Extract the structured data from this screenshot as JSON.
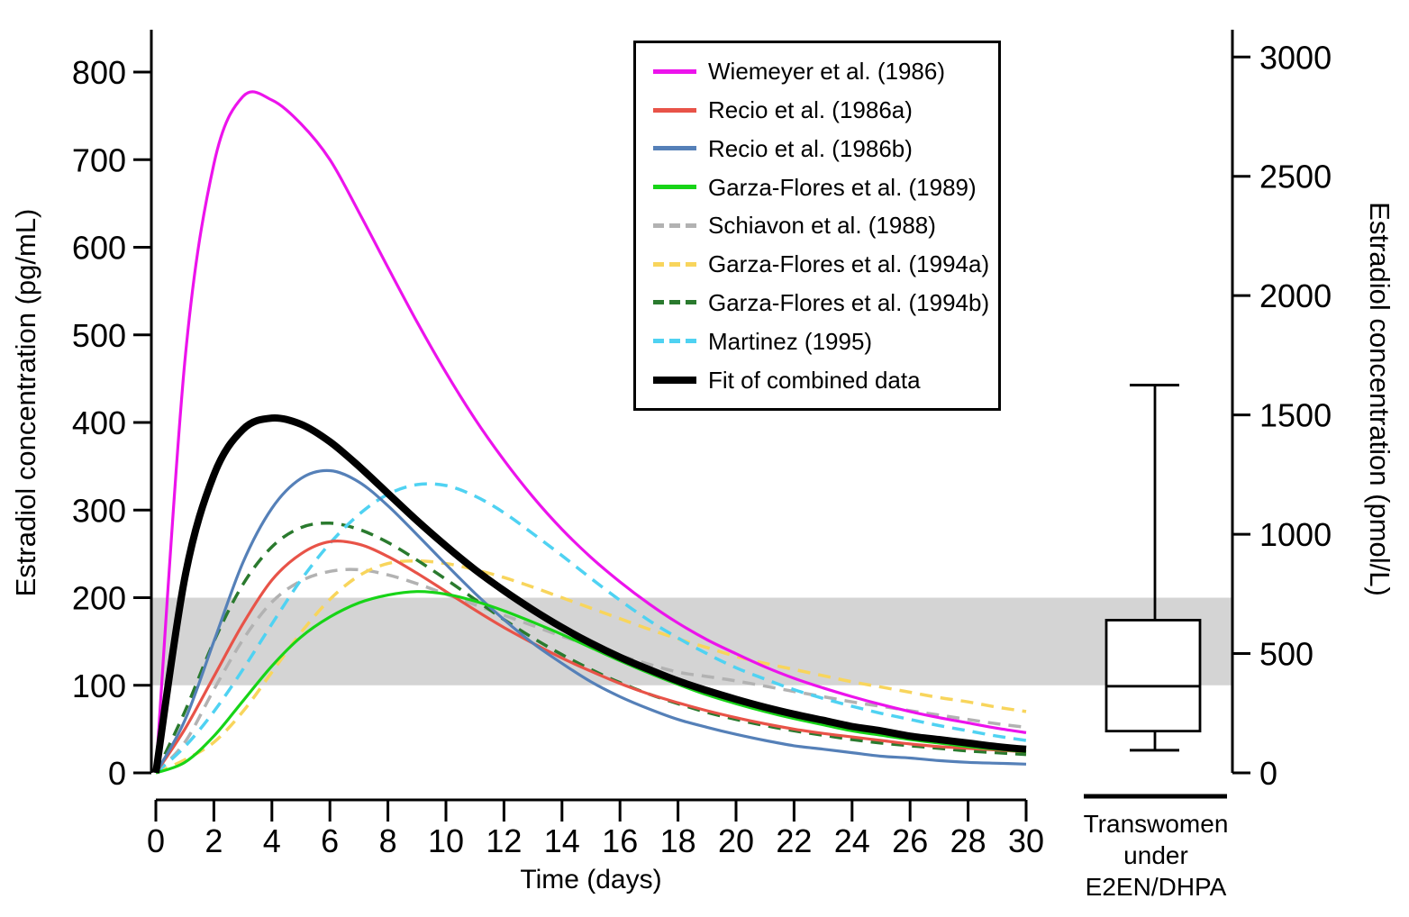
{
  "chart_data": {
    "type": "line",
    "xlabel": "Time (days)",
    "ylabel_left": "Estradiol concentration (pg/mL)",
    "ylabel_right": "Estradiol concentration (pmol/L)",
    "x_range": [
      0,
      30
    ],
    "x_ticks": [
      0,
      2,
      4,
      6,
      8,
      10,
      12,
      14,
      16,
      18,
      20,
      22,
      24,
      26,
      28,
      30
    ],
    "y_left_ticks": [
      0,
      100,
      200,
      300,
      400,
      500,
      600,
      700,
      800
    ],
    "y_right_ticks": [
      0,
      500,
      1000,
      1500,
      2000,
      2500,
      3000
    ],
    "pmol_per_pg": 3.671,
    "grid": false,
    "legend_position": "top-right-inside",
    "x": [
      0,
      1,
      2,
      3,
      4,
      5,
      6,
      7,
      8,
      9,
      10,
      11,
      12,
      13,
      14,
      15,
      16,
      17,
      18,
      19,
      20,
      21,
      22,
      23,
      24,
      25,
      26,
      27,
      28,
      29,
      30
    ],
    "series": [
      {
        "name": "Wiemeyer et al. (1986)",
        "color": "#ec13ec",
        "dash": false,
        "thick": false,
        "values": [
          0,
          470,
          695,
          772,
          768,
          741,
          700,
          640,
          577,
          515,
          457,
          404,
          357,
          315,
          278,
          246,
          218,
          193,
          171,
          152,
          136,
          121,
          108,
          97,
          87,
          78,
          70,
          63,
          57,
          51,
          46
        ]
      },
      {
        "name": "Recio et al. (1986a)",
        "color": "#e85348",
        "dash": false,
        "thick": false,
        "values": [
          0,
          50,
          110,
          170,
          220,
          250,
          264,
          261,
          247,
          228,
          207,
          186,
          166,
          148,
          131,
          116,
          102,
          90,
          80,
          71,
          63,
          56,
          50,
          45,
          41,
          37,
          33,
          30,
          28,
          26,
          24
        ]
      },
      {
        "name": "Recio et al. (1986b)",
        "color": "#5580b8",
        "dash": false,
        "thick": false,
        "values": [
          0,
          60,
          150,
          240,
          302,
          336,
          345,
          332,
          305,
          272,
          238,
          205,
          175,
          148,
          125,
          104,
          87,
          73,
          61,
          52,
          44,
          37,
          31,
          27,
          23,
          19,
          17,
          14,
          12,
          11,
          10
        ]
      },
      {
        "name": "Garza-Flores et al. (1989)",
        "color": "#17d417",
        "dash": false,
        "thick": false,
        "values": [
          0,
          12,
          42,
          82,
          122,
          155,
          178,
          194,
          203,
          207,
          204,
          196,
          185,
          172,
          158,
          143,
          128,
          114,
          101,
          89,
          79,
          70,
          62,
          55,
          48,
          43,
          38,
          34,
          30,
          27,
          24
        ]
      },
      {
        "name": "Schiavon et al. (1988)",
        "color": "#b2b2b2",
        "dash": true,
        "thick": false,
        "values": [
          0,
          35,
          95,
          152,
          195,
          219,
          230,
          232,
          226,
          216,
          204,
          192,
          180,
          168,
          156,
          145,
          134,
          124,
          115,
          110,
          105,
          99,
          93,
          87,
          81,
          76,
          71,
          66,
          61,
          56,
          52
        ]
      },
      {
        "name": "Garza-Flores et al. (1994a)",
        "color": "#f8d55c",
        "dash": true,
        "thick": false,
        "values": [
          0,
          15,
          35,
          70,
          115,
          160,
          198,
          225,
          239,
          242,
          239,
          232,
          223,
          212,
          200,
          188,
          176,
          164,
          153,
          143,
          133,
          125,
          118,
          111,
          104,
          98,
          92,
          86,
          81,
          75,
          70
        ]
      },
      {
        "name": "Garza-Flores et al. (1994b)",
        "color": "#2a7a2e",
        "dash": true,
        "thick": false,
        "values": [
          0,
          70,
          150,
          215,
          258,
          280,
          285,
          278,
          263,
          243,
          221,
          198,
          175,
          154,
          135,
          118,
          103,
          90,
          79,
          69,
          61,
          54,
          48,
          43,
          38,
          34,
          31,
          28,
          25,
          23,
          21
        ]
      },
      {
        "name": "Martinez (1995)",
        "color": "#4fd2f2",
        "dash": true,
        "thick": false,
        "values": [
          0,
          30,
          70,
          118,
          170,
          220,
          262,
          295,
          318,
          329,
          328,
          316,
          297,
          273,
          248,
          222,
          197,
          174,
          154,
          136,
          120,
          107,
          95,
          85,
          76,
          68,
          61,
          54,
          48,
          42,
          37
        ]
      },
      {
        "name": "Fit of combined data",
        "color": "#000000",
        "dash": false,
        "thick": true,
        "values": [
          0,
          223,
          340,
          392,
          405,
          398,
          378,
          350,
          319,
          288,
          259,
          232,
          208,
          186,
          166,
          148,
          132,
          118,
          105,
          94,
          84,
          75,
          67,
          60,
          53,
          48,
          42,
          38,
          34,
          30,
          27
        ]
      }
    ],
    "reference_band": {
      "from_pg": 100,
      "to_pg": 200,
      "color": "#d4d4d4"
    },
    "boxplot": {
      "label_lines": [
        "Transwomen",
        "under",
        "E2EN/DHPA"
      ],
      "unit": "pmol/L",
      "whisker_low": 95,
      "q1": 175,
      "median": 363,
      "q3": 640,
      "whisker_high": 1625
    }
  }
}
